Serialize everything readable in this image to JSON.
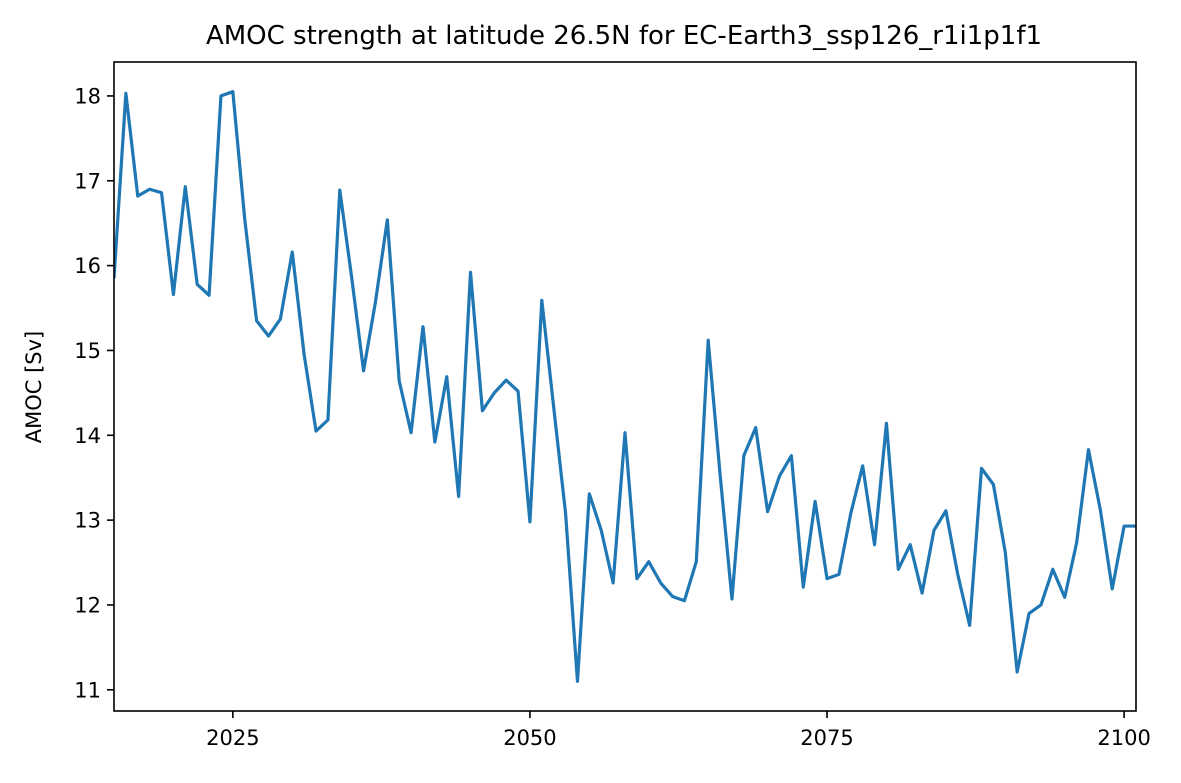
{
  "chart_data": {
    "type": "line",
    "title": "AMOC strength at latitude 26.5N for EC-Earth3_ssp126_r1i1p1f1",
    "xlabel": "",
    "ylabel": "AMOC [Sv]",
    "xlim": [
      2015,
      2101
    ],
    "ylim": [
      10.75,
      18.4
    ],
    "xticks": [
      2025,
      2050,
      2075,
      2100
    ],
    "yticks": [
      11,
      12,
      13,
      14,
      15,
      16,
      17,
      18
    ],
    "grid": false,
    "color": "#1f77b4",
    "x": [
      2015,
      2016,
      2017,
      2018,
      2019,
      2020,
      2021,
      2022,
      2023,
      2024,
      2025,
      2026,
      2027,
      2028,
      2029,
      2030,
      2031,
      2032,
      2033,
      2034,
      2035,
      2036,
      2037,
      2038,
      2039,
      2040,
      2041,
      2042,
      2043,
      2044,
      2045,
      2046,
      2047,
      2048,
      2049,
      2050,
      2051,
      2052,
      2053,
      2054,
      2055,
      2056,
      2057,
      2058,
      2059,
      2060,
      2061,
      2062,
      2063,
      2064,
      2065,
      2066,
      2067,
      2068,
      2069,
      2070,
      2071,
      2072,
      2073,
      2074,
      2075,
      2076,
      2077,
      2078,
      2079,
      2080,
      2081,
      2082,
      2083,
      2084,
      2085,
      2086,
      2087,
      2088,
      2089,
      2090,
      2091,
      2092,
      2093,
      2094,
      2095,
      2096,
      2097,
      2098,
      2099,
      2100,
      2101
    ],
    "y": [
      15.85,
      18.03,
      16.82,
      16.9,
      16.86,
      15.66,
      16.93,
      15.78,
      15.65,
      18.0,
      18.05,
      16.55,
      15.35,
      15.17,
      15.37,
      16.16,
      14.95,
      14.05,
      14.18,
      16.89,
      15.86,
      14.76,
      15.57,
      16.54,
      14.64,
      14.03,
      15.28,
      13.92,
      14.69,
      13.28,
      15.92,
      14.29,
      14.5,
      14.65,
      14.52,
      12.98,
      15.59,
      14.33,
      13.08,
      11.1,
      13.31,
      12.88,
      12.26,
      14.03,
      12.31,
      12.51,
      12.26,
      12.1,
      12.05,
      12.51,
      15.12,
      13.54,
      12.07,
      13.76,
      14.09,
      13.1,
      13.52,
      13.76,
      12.21,
      13.22,
      12.31,
      12.36,
      13.08,
      13.64,
      12.71,
      14.14,
      12.42,
      12.71,
      12.14,
      12.88,
      13.11,
      12.36,
      11.76,
      13.61,
      13.42,
      12.62,
      11.21,
      11.9,
      12.0,
      12.42,
      12.09,
      12.73,
      13.83,
      13.12,
      12.19,
      12.93,
      12.93
    ]
  }
}
